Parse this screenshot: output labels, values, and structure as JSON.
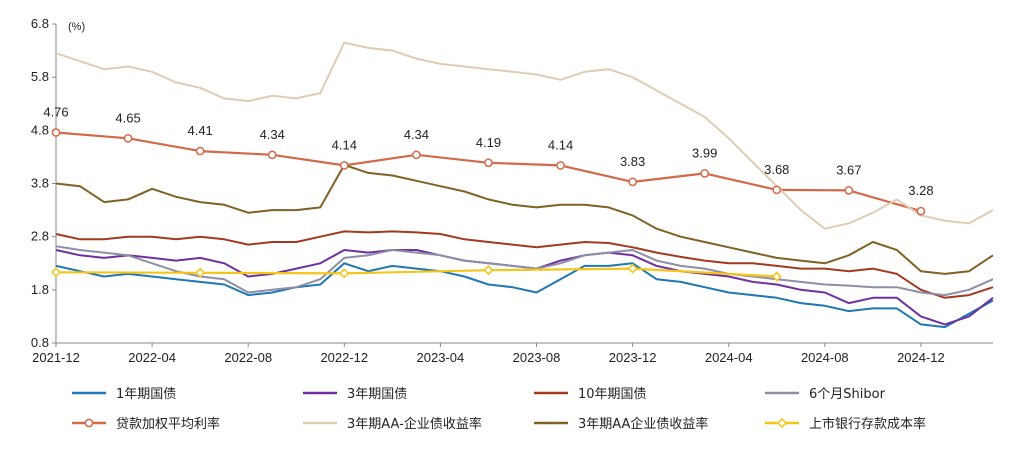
{
  "chart_data": {
    "type": "line",
    "unit_label": "(%)",
    "ylim": [
      0.8,
      6.8
    ],
    "y_ticks": [
      "0.8",
      "1.8",
      "2.8",
      "3.8",
      "4.8",
      "5.8",
      "6.8"
    ],
    "x_ticks": [
      "2021-12",
      "2022-04",
      "2022-08",
      "2022-12",
      "2023-04",
      "2023-08",
      "2023-12",
      "2024-04",
      "2024-08",
      "2024-12"
    ],
    "xlim": [
      "2021-12",
      "2025-03"
    ],
    "grid": false,
    "legend_position": "bottom",
    "series": [
      {
        "name": "1年期国债",
        "color": "#1f77b4",
        "marker": "none",
        "x": [
          "2021-12",
          "2022-01",
          "2022-02",
          "2022-03",
          "2022-04",
          "2022-05",
          "2022-06",
          "2022-07",
          "2022-08",
          "2022-09",
          "2022-10",
          "2022-11",
          "2022-12",
          "2023-01",
          "2023-02",
          "2023-03",
          "2023-04",
          "2023-05",
          "2023-06",
          "2023-07",
          "2023-08",
          "2023-09",
          "2023-10",
          "2023-11",
          "2023-12",
          "2024-01",
          "2024-02",
          "2024-03",
          "2024-04",
          "2024-05",
          "2024-06",
          "2024-07",
          "2024-08",
          "2024-09",
          "2024-10",
          "2024-11",
          "2024-12",
          "2025-01",
          "2025-02",
          "2025-03"
        ],
        "values": [
          2.25,
          2.15,
          2.05,
          2.1,
          2.05,
          2.0,
          1.95,
          1.9,
          1.7,
          1.75,
          1.85,
          1.9,
          2.3,
          2.15,
          2.25,
          2.2,
          2.15,
          2.05,
          1.9,
          1.85,
          1.75,
          2.0,
          2.25,
          2.25,
          2.3,
          2.0,
          1.95,
          1.85,
          1.75,
          1.7,
          1.65,
          1.55,
          1.5,
          1.4,
          1.45,
          1.45,
          1.15,
          1.1,
          1.35,
          1.6
        ]
      },
      {
        "name": "3年期国债",
        "color": "#7030a0",
        "marker": "none",
        "x": [
          "2021-12",
          "2022-01",
          "2022-02",
          "2022-03",
          "2022-04",
          "2022-05",
          "2022-06",
          "2022-07",
          "2022-08",
          "2022-09",
          "2022-10",
          "2022-11",
          "2022-12",
          "2023-01",
          "2023-02",
          "2023-03",
          "2023-04",
          "2023-05",
          "2023-06",
          "2023-07",
          "2023-08",
          "2023-09",
          "2023-10",
          "2023-11",
          "2023-12",
          "2024-01",
          "2024-02",
          "2024-03",
          "2024-04",
          "2024-05",
          "2024-06",
          "2024-07",
          "2024-08",
          "2024-09",
          "2024-10",
          "2024-11",
          "2024-12",
          "2025-01",
          "2025-02",
          "2025-03"
        ],
        "values": [
          2.55,
          2.45,
          2.4,
          2.45,
          2.4,
          2.35,
          2.4,
          2.3,
          2.05,
          2.1,
          2.2,
          2.3,
          2.55,
          2.5,
          2.55,
          2.55,
          2.45,
          2.35,
          2.3,
          2.25,
          2.2,
          2.35,
          2.45,
          2.5,
          2.45,
          2.25,
          2.15,
          2.1,
          2.05,
          1.95,
          1.9,
          1.8,
          1.75,
          1.55,
          1.65,
          1.65,
          1.3,
          1.15,
          1.3,
          1.65
        ]
      },
      {
        "name": "10年期国债",
        "color": "#a33a1f",
        "marker": "none",
        "x": [
          "2021-12",
          "2022-01",
          "2022-02",
          "2022-03",
          "2022-04",
          "2022-05",
          "2022-06",
          "2022-07",
          "2022-08",
          "2022-09",
          "2022-10",
          "2022-11",
          "2022-12",
          "2023-01",
          "2023-02",
          "2023-03",
          "2023-04",
          "2023-05",
          "2023-06",
          "2023-07",
          "2023-08",
          "2023-09",
          "2023-10",
          "2023-11",
          "2023-12",
          "2024-01",
          "2024-02",
          "2024-03",
          "2024-04",
          "2024-05",
          "2024-06",
          "2024-07",
          "2024-08",
          "2024-09",
          "2024-10",
          "2024-11",
          "2024-12",
          "2025-01",
          "2025-02",
          "2025-03"
        ],
        "values": [
          2.85,
          2.75,
          2.75,
          2.8,
          2.8,
          2.75,
          2.8,
          2.75,
          2.65,
          2.7,
          2.7,
          2.8,
          2.9,
          2.88,
          2.9,
          2.88,
          2.85,
          2.75,
          2.7,
          2.65,
          2.6,
          2.65,
          2.7,
          2.68,
          2.6,
          2.5,
          2.42,
          2.35,
          2.3,
          2.3,
          2.25,
          2.2,
          2.2,
          2.15,
          2.2,
          2.1,
          1.8,
          1.65,
          1.7,
          1.85
        ]
      },
      {
        "name": "6个月Shibor",
        "color": "#8c8fa6",
        "marker": "none",
        "x": [
          "2021-12",
          "2022-01",
          "2022-02",
          "2022-03",
          "2022-04",
          "2022-05",
          "2022-06",
          "2022-07",
          "2022-08",
          "2022-09",
          "2022-10",
          "2022-11",
          "2022-12",
          "2023-01",
          "2023-02",
          "2023-03",
          "2023-04",
          "2023-05",
          "2023-06",
          "2023-07",
          "2023-08",
          "2023-09",
          "2023-10",
          "2023-11",
          "2023-12",
          "2024-01",
          "2024-02",
          "2024-03",
          "2024-04",
          "2024-05",
          "2024-06",
          "2024-07",
          "2024-08",
          "2024-09",
          "2024-10",
          "2024-11",
          "2024-12",
          "2025-01",
          "2025-02",
          "2025-03"
        ],
        "values": [
          2.62,
          2.55,
          2.5,
          2.45,
          2.3,
          2.15,
          2.05,
          2.0,
          1.75,
          1.8,
          1.85,
          2.0,
          2.4,
          2.45,
          2.55,
          2.5,
          2.45,
          2.35,
          2.3,
          2.25,
          2.2,
          2.3,
          2.45,
          2.5,
          2.55,
          2.35,
          2.25,
          2.2,
          2.1,
          2.05,
          2.0,
          1.95,
          1.9,
          1.88,
          1.85,
          1.85,
          1.75,
          1.7,
          1.8,
          2.0
        ]
      },
      {
        "name": "贷款加权平均利率",
        "color": "#d4694a",
        "marker": "circle",
        "x": [
          "2021-12",
          "2022-03",
          "2022-06",
          "2022-09",
          "2022-12",
          "2023-03",
          "2023-06",
          "2023-09",
          "2023-12",
          "2024-03",
          "2024-06",
          "2024-09",
          "2024-12"
        ],
        "values": [
          4.76,
          4.65,
          4.41,
          4.34,
          4.14,
          4.34,
          4.19,
          4.14,
          3.83,
          3.99,
          3.68,
          3.67,
          3.28
        ],
        "labels": [
          "4.76",
          "4.65",
          "4.41",
          "4.34",
          "4.14",
          "4.34",
          "4.19",
          "4.14",
          "3.83",
          "3.99",
          "3.68",
          "3.67",
          "3.28"
        ]
      },
      {
        "name": "3年期AA-企业债收益率",
        "color": "#e0ccb4",
        "marker": "none",
        "x": [
          "2021-12",
          "2022-01",
          "2022-02",
          "2022-03",
          "2022-04",
          "2022-05",
          "2022-06",
          "2022-07",
          "2022-08",
          "2022-09",
          "2022-10",
          "2022-11",
          "2022-12",
          "2023-01",
          "2023-02",
          "2023-03",
          "2023-04",
          "2023-05",
          "2023-06",
          "2023-07",
          "2023-08",
          "2023-09",
          "2023-10",
          "2023-11",
          "2023-12",
          "2024-01",
          "2024-02",
          "2024-03",
          "2024-04",
          "2024-05",
          "2024-06",
          "2024-07",
          "2024-08",
          "2024-09",
          "2024-10",
          "2024-11",
          "2024-12",
          "2025-01",
          "2025-02",
          "2025-03"
        ],
        "values": [
          6.25,
          6.1,
          5.95,
          6.0,
          5.9,
          5.7,
          5.6,
          5.4,
          5.35,
          5.45,
          5.4,
          5.5,
          6.45,
          6.35,
          6.3,
          6.15,
          6.05,
          6.0,
          5.95,
          5.9,
          5.85,
          5.75,
          5.9,
          5.95,
          5.8,
          5.55,
          5.3,
          5.05,
          4.65,
          4.2,
          3.75,
          3.3,
          2.95,
          3.05,
          3.25,
          3.5,
          3.2,
          3.1,
          3.05,
          3.3
        ]
      },
      {
        "name": "3年期AA企业债收益率",
        "color": "#7f6224",
        "marker": "none",
        "x": [
          "2021-12",
          "2022-01",
          "2022-02",
          "2022-03",
          "2022-04",
          "2022-05",
          "2022-06",
          "2022-07",
          "2022-08",
          "2022-09",
          "2022-10",
          "2022-11",
          "2022-12",
          "2023-01",
          "2023-02",
          "2023-03",
          "2023-04",
          "2023-05",
          "2023-06",
          "2023-07",
          "2023-08",
          "2023-09",
          "2023-10",
          "2023-11",
          "2023-12",
          "2024-01",
          "2024-02",
          "2024-03",
          "2024-04",
          "2024-05",
          "2024-06",
          "2024-07",
          "2024-08",
          "2024-09",
          "2024-10",
          "2024-11",
          "2024-12",
          "2025-01",
          "2025-02",
          "2025-03"
        ],
        "values": [
          3.8,
          3.75,
          3.45,
          3.5,
          3.7,
          3.55,
          3.45,
          3.4,
          3.25,
          3.3,
          3.3,
          3.35,
          4.15,
          4.0,
          3.95,
          3.85,
          3.75,
          3.65,
          3.5,
          3.4,
          3.35,
          3.4,
          3.4,
          3.35,
          3.2,
          2.95,
          2.8,
          2.7,
          2.6,
          2.5,
          2.4,
          2.35,
          2.3,
          2.45,
          2.7,
          2.55,
          2.15,
          2.1,
          2.15,
          2.45
        ]
      },
      {
        "name": "上市银行存款成本率",
        "color": "#f5c518",
        "marker": "diamond",
        "x": [
          "2021-12",
          "2022-06",
          "2022-12",
          "2023-06",
          "2023-12",
          "2024-06"
        ],
        "values": [
          2.13,
          2.12,
          2.11,
          2.17,
          2.2,
          2.05
        ]
      }
    ]
  }
}
